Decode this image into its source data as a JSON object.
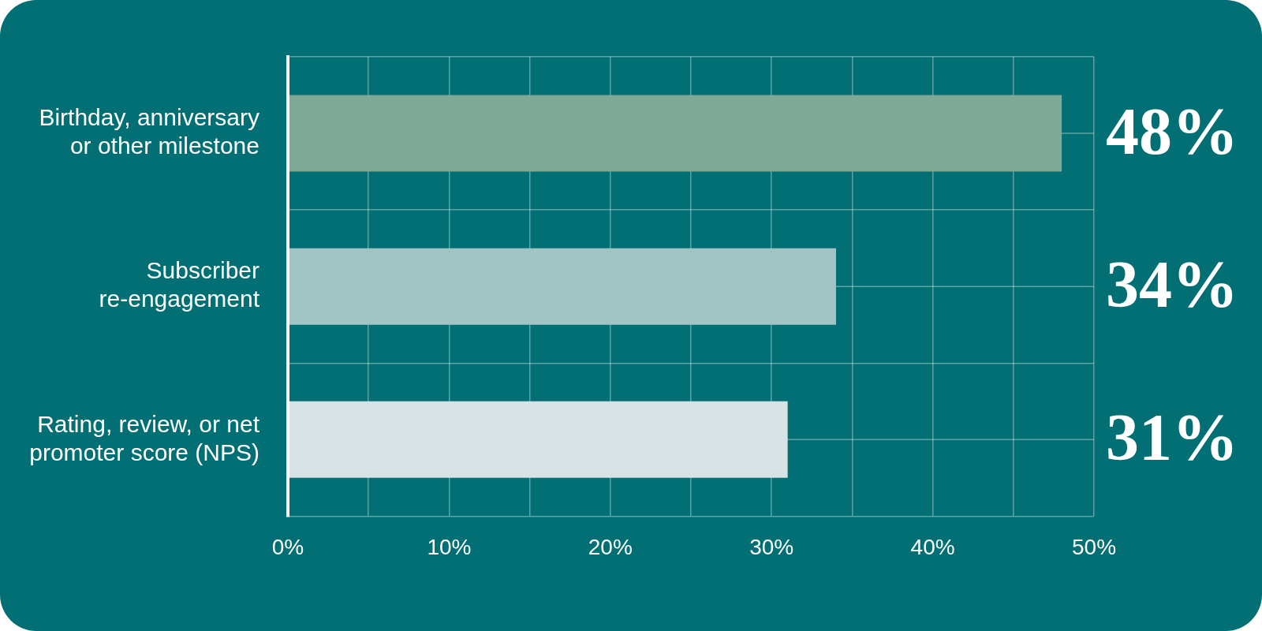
{
  "chart_data": {
    "type": "bar",
    "orientation": "horizontal",
    "categories": [
      "Birthday, anniversary or other milestone",
      "Subscriber re-engagement",
      "Rating, review, or net promoter score (NPS)"
    ],
    "values": [
      48,
      34,
      31
    ],
    "colors": [
      "#80a896",
      "#a2c4c4",
      "#d8e3e5"
    ],
    "value_labels": [
      "48%",
      "34%",
      "31%"
    ],
    "xlim": [
      0,
      50
    ],
    "xticks": [
      {
        "value": 0,
        "label": "0%"
      },
      {
        "value": 5,
        "label": null
      },
      {
        "value": 10,
        "label": "10%"
      },
      {
        "value": 15,
        "label": null
      },
      {
        "value": 20,
        "label": "20%"
      },
      {
        "value": 25,
        "label": null
      },
      {
        "value": 30,
        "label": "30%"
      },
      {
        "value": 35,
        "label": null
      },
      {
        "value": 40,
        "label": "40%"
      },
      {
        "value": 45,
        "label": null
      },
      {
        "value": 50,
        "label": "50%"
      }
    ],
    "grid": true
  }
}
